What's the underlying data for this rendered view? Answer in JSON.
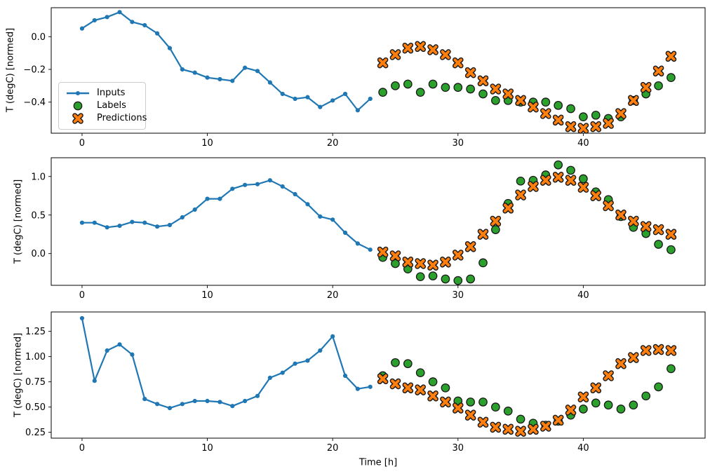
{
  "figure": {
    "background": "#ffffff"
  },
  "axis": {
    "xlabel": "Time [h]",
    "xticks": [
      0,
      10,
      20,
      30,
      40
    ],
    "xtick_labels": [
      "0",
      "10",
      "20",
      "30",
      "40"
    ],
    "xlim": [
      -2.46,
      49.72
    ]
  },
  "legend": {
    "entries": [
      {
        "label": "Inputs",
        "marker": "line-dot",
        "color": "#1f77b4"
      },
      {
        "label": "Labels",
        "marker": "circle",
        "color": "#2ca02c"
      },
      {
        "label": "Predictions",
        "marker": "x",
        "color": "#ff7f0e"
      }
    ]
  },
  "colors": {
    "inputs": "#1f77b4",
    "labels": "#2ca02c",
    "predictions": "#ff7f0e",
    "edge": "#1a1a1a",
    "spine": "#000000",
    "text": "#000000",
    "legend_border": "#cccccc"
  },
  "chart_data": [
    {
      "type": "line",
      "title": "",
      "ylabel": "T (degC) [normed]",
      "ylim": [
        -0.59,
        0.177
      ],
      "grid": false,
      "yticks": [
        {
          "value": 0.0,
          "label": "0.0"
        },
        {
          "value": -0.2,
          "label": "−0.2"
        },
        {
          "value": -0.4,
          "label": "−0.4"
        }
      ],
      "series": [
        {
          "name": "Inputs",
          "kind": "line",
          "marker": "dot",
          "x_start": 0,
          "values": [
            0.05,
            0.1,
            0.12,
            0.15,
            0.09,
            0.07,
            0.02,
            -0.07,
            -0.2,
            -0.22,
            -0.25,
            -0.26,
            -0.27,
            -0.19,
            -0.21,
            -0.28,
            -0.35,
            -0.38,
            -0.37,
            -0.43,
            -0.39,
            -0.35,
            -0.45,
            -0.38
          ]
        },
        {
          "name": "Labels",
          "kind": "scatter",
          "marker": "circle",
          "x_start": 24,
          "values": [
            -0.34,
            -0.3,
            -0.29,
            -0.34,
            -0.29,
            -0.31,
            -0.31,
            -0.32,
            -0.35,
            -0.39,
            -0.39,
            -0.4,
            -0.4,
            -0.4,
            -0.42,
            -0.44,
            -0.49,
            -0.48,
            -0.5,
            -0.49,
            -0.39,
            -0.35,
            -0.3,
            -0.25
          ]
        },
        {
          "name": "Predictions",
          "kind": "scatter",
          "marker": "X",
          "x_start": 24,
          "values": [
            -0.16,
            -0.11,
            -0.07,
            -0.06,
            -0.08,
            -0.11,
            -0.16,
            -0.22,
            -0.27,
            -0.32,
            -0.35,
            -0.39,
            -0.43,
            -0.47,
            -0.51,
            -0.55,
            -0.56,
            -0.55,
            -0.53,
            -0.47,
            -0.39,
            -0.31,
            -0.21,
            -0.12
          ]
        }
      ]
    },
    {
      "type": "line",
      "title": "",
      "ylabel": "T (degC) [normed]",
      "ylim": [
        -0.412,
        1.243
      ],
      "grid": false,
      "yticks": [
        {
          "value": 1.0,
          "label": "1.0"
        },
        {
          "value": 0.5,
          "label": "0.5"
        },
        {
          "value": 0.0,
          "label": "0.0"
        }
      ],
      "series": [
        {
          "name": "Inputs",
          "kind": "line",
          "marker": "dot",
          "x_start": 0,
          "values": [
            0.4,
            0.4,
            0.34,
            0.36,
            0.41,
            0.4,
            0.35,
            0.37,
            0.47,
            0.57,
            0.71,
            0.71,
            0.84,
            0.89,
            0.9,
            0.95,
            0.87,
            0.77,
            0.64,
            0.48,
            0.44,
            0.27,
            0.13,
            0.05
          ]
        },
        {
          "name": "Labels",
          "kind": "scatter",
          "marker": "circle",
          "x_start": 24,
          "values": [
            -0.05,
            -0.13,
            -0.2,
            -0.3,
            -0.29,
            -0.33,
            -0.35,
            -0.33,
            -0.12,
            0.31,
            0.65,
            0.94,
            0.95,
            1.02,
            1.15,
            1.08,
            0.97,
            0.8,
            0.7,
            0.48,
            0.34,
            0.26,
            0.12,
            0.05
          ]
        },
        {
          "name": "Predictions",
          "kind": "scatter",
          "marker": "X",
          "x_start": 24,
          "values": [
            0.02,
            -0.03,
            -0.11,
            -0.13,
            -0.15,
            -0.11,
            -0.02,
            0.09,
            0.25,
            0.42,
            0.59,
            0.76,
            0.87,
            0.95,
            0.99,
            0.95,
            0.86,
            0.75,
            0.62,
            0.5,
            0.42,
            0.35,
            0.31,
            0.25
          ]
        }
      ]
    },
    {
      "type": "line",
      "title": "",
      "ylabel": "T (degC) [normed]",
      "ylim": [
        0.192,
        1.442
      ],
      "grid": false,
      "yticks": [
        {
          "value": 1.25,
          "label": "1.25"
        },
        {
          "value": 1.0,
          "label": "1.00"
        },
        {
          "value": 0.75,
          "label": "0.75"
        },
        {
          "value": 0.5,
          "label": "0.50"
        },
        {
          "value": 0.25,
          "label": "0.25"
        }
      ],
      "series": [
        {
          "name": "Inputs",
          "kind": "line",
          "marker": "dot",
          "x_start": 0,
          "values": [
            1.38,
            0.76,
            1.06,
            1.12,
            1.02,
            0.58,
            0.53,
            0.49,
            0.53,
            0.56,
            0.56,
            0.55,
            0.51,
            0.56,
            0.61,
            0.79,
            0.84,
            0.93,
            0.96,
            1.06,
            1.2,
            0.81,
            0.68,
            0.7
          ]
        },
        {
          "name": "Labels",
          "kind": "scatter",
          "marker": "circle",
          "x_start": 24,
          "values": [
            0.81,
            0.94,
            0.93,
            0.84,
            0.75,
            0.69,
            0.56,
            0.55,
            0.55,
            0.5,
            0.46,
            0.38,
            0.34,
            0.32,
            0.36,
            0.42,
            0.48,
            0.54,
            0.52,
            0.48,
            0.52,
            0.61,
            0.7,
            0.88
          ]
        },
        {
          "name": "Predictions",
          "kind": "scatter",
          "marker": "X",
          "x_start": 24,
          "values": [
            0.78,
            0.73,
            0.69,
            0.67,
            0.61,
            0.55,
            0.49,
            0.42,
            0.35,
            0.3,
            0.28,
            0.26,
            0.28,
            0.31,
            0.37,
            0.47,
            0.6,
            0.69,
            0.81,
            0.93,
            0.99,
            1.06,
            1.07,
            1.06
          ]
        }
      ]
    }
  ]
}
